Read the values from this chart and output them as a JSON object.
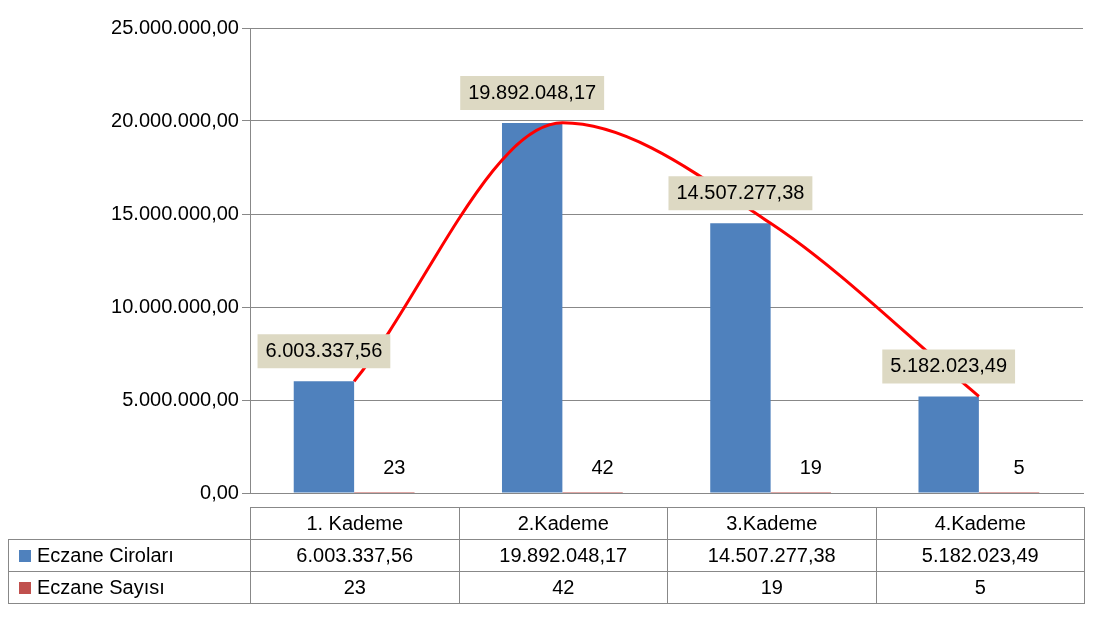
{
  "chart_data": {
    "type": "bar",
    "categories": [
      "1. Kademe",
      "2.Kademe",
      "3.Kademe",
      "4.Kademe"
    ],
    "series": [
      {
        "name": "Eczane Ciroları",
        "color": "#4f81bd",
        "values": [
          6003337.56,
          19892048.17,
          14507277.38,
          5182023.49
        ],
        "value_labels": [
          "6.003.337,56",
          "19.892.048,17",
          "14.507.277,38",
          "5.182.023,49"
        ]
      },
      {
        "name": "Eczane Sayısı",
        "color": "#c0504d",
        "values": [
          23,
          42,
          19,
          5
        ],
        "value_labels": [
          "23",
          "42",
          "19",
          "5"
        ]
      },
      {
        "type": "line",
        "color": "#ff0000",
        "values": [
          6000000,
          19900000,
          14500000,
          5200000
        ]
      }
    ],
    "ylim": [
      0,
      25000000
    ],
    "yticks": [
      {
        "value": 0,
        "label": "0,00"
      },
      {
        "value": 5000000,
        "label": "5.000.000,00"
      },
      {
        "value": 10000000,
        "label": "10.000.000,00"
      },
      {
        "value": 15000000,
        "label": "15.000.000,00"
      },
      {
        "value": 20000000,
        "label": "20.000.000,00"
      },
      {
        "value": 25000000,
        "label": "25.000.000,00"
      }
    ],
    "grid": "y",
    "legend": "bottom"
  }
}
